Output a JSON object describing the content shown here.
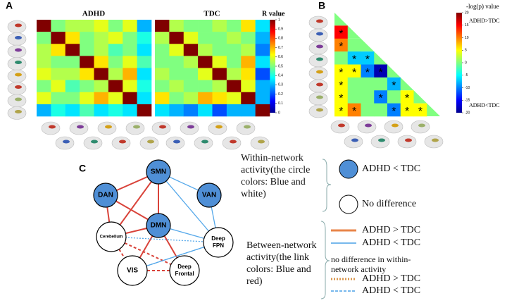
{
  "panel_a": {
    "label": "A",
    "titles": [
      "ADHD",
      "TDC"
    ],
    "colorbar_title": "R value",
    "clim": [
      0,
      1
    ],
    "cticks": [
      0,
      0.1,
      0.2,
      0.3,
      0.4,
      0.5,
      0.6,
      0.7,
      0.8,
      0.9,
      1
    ],
    "matrices": [
      [
        [
          1,
          0.5,
          0.55,
          0.55,
          0.6,
          0.5,
          0.6,
          0.3
        ],
        [
          0.5,
          1,
          0.65,
          0.5,
          0.55,
          0.6,
          0.5,
          0.4
        ],
        [
          0.55,
          0.65,
          1,
          0.5,
          0.55,
          0.45,
          0.5,
          0.35
        ],
        [
          0.55,
          0.5,
          0.5,
          1,
          0.65,
          0.5,
          0.6,
          0.45
        ],
        [
          0.6,
          0.55,
          0.55,
          0.65,
          1,
          0.55,
          0.7,
          0.35
        ],
        [
          0.5,
          0.6,
          0.45,
          0.5,
          0.55,
          1,
          0.6,
          0.4
        ],
        [
          0.6,
          0.5,
          0.5,
          0.6,
          0.7,
          0.6,
          1,
          0.35
        ],
        [
          0.3,
          0.4,
          0.35,
          0.45,
          0.35,
          0.4,
          0.35,
          1
        ]
      ],
      [
        [
          1,
          0.55,
          0.5,
          0.5,
          0.55,
          0.5,
          0.65,
          0.35
        ],
        [
          0.55,
          1,
          0.6,
          0.5,
          0.5,
          0.55,
          0.5,
          0.3
        ],
        [
          0.5,
          0.6,
          1,
          0.55,
          0.5,
          0.5,
          0.55,
          0.25
        ],
        [
          0.5,
          0.5,
          0.55,
          1,
          0.6,
          0.5,
          0.7,
          0.35
        ],
        [
          0.55,
          0.5,
          0.5,
          0.6,
          1,
          0.55,
          0.65,
          0.2
        ],
        [
          0.5,
          0.55,
          0.5,
          0.5,
          0.55,
          1,
          0.6,
          0.3
        ],
        [
          0.65,
          0.5,
          0.55,
          0.7,
          0.65,
          0.6,
          1,
          0.3
        ],
        [
          0.35,
          0.3,
          0.25,
          0.35,
          0.2,
          0.3,
          0.3,
          1
        ]
      ]
    ]
  },
  "panel_b": {
    "label": "B",
    "colorbar_title": "-log(p) value",
    "top_label": "ADHD>TDC",
    "bottom_label": "ADHD<TDC",
    "clim": [
      -20,
      20
    ],
    "cticks": [
      20,
      15,
      10,
      5,
      0,
      -5,
      -10,
      -15,
      -20
    ],
    "values": [
      [
        0
      ],
      [
        15,
        0
      ],
      [
        10,
        0,
        0
      ],
      [
        0,
        -7,
        -7,
        0
      ],
      [
        5,
        5,
        -10,
        -18,
        0
      ],
      [
        5,
        0,
        0,
        0,
        -8,
        0
      ],
      [
        5,
        0,
        0,
        -10,
        0,
        5,
        0
      ],
      [
        5,
        10,
        0,
        0,
        -10,
        5,
        5,
        0
      ]
    ],
    "stars": [
      [
        null
      ],
      [
        "*",
        null
      ],
      [
        "*",
        null,
        null
      ],
      [
        null,
        "*",
        "*",
        null
      ],
      [
        "*",
        "*",
        "*",
        "*",
        null
      ],
      [
        "*",
        null,
        null,
        null,
        "*",
        null
      ],
      [
        "*",
        null,
        null,
        "*",
        null,
        "*",
        null
      ],
      [
        "*",
        "*",
        null,
        null,
        "*",
        "*",
        "*",
        null
      ]
    ]
  },
  "panel_c": {
    "label": "C",
    "nodes": [
      {
        "label": "SMN",
        "state": "lower"
      },
      {
        "label": "DAN",
        "state": "lower"
      },
      {
        "label": "VAN",
        "state": "lower"
      },
      {
        "label": "DMN",
        "state": "lower"
      },
      {
        "label": "Cerebellum",
        "state": "none"
      },
      {
        "label": "Deep FPN",
        "state": "none"
      },
      {
        "label": "VIS",
        "state": "none"
      },
      {
        "label": "Deep Frontal",
        "state": "none"
      }
    ],
    "edges": [
      [
        0,
        1,
        "higher"
      ],
      [
        0,
        3,
        "higher"
      ],
      [
        0,
        4,
        "higher"
      ],
      [
        1,
        3,
        "higher"
      ],
      [
        1,
        4,
        "higher"
      ],
      [
        3,
        4,
        "higher"
      ],
      [
        3,
        6,
        "higher"
      ],
      [
        3,
        7,
        "higher"
      ],
      [
        0,
        2,
        "lower"
      ],
      [
        0,
        5,
        "lower"
      ],
      [
        2,
        5,
        "lower"
      ],
      [
        3,
        5,
        "lower"
      ],
      [
        6,
        5,
        "lower"
      ],
      [
        4,
        6,
        "higher_nodiff"
      ],
      [
        4,
        7,
        "higher_nodiff"
      ],
      [
        6,
        7,
        "higher_nodiff"
      ],
      [
        4,
        5,
        "lower_nodiff"
      ],
      [
        6,
        5,
        "lower_nodiff"
      ]
    ]
  },
  "legend": {
    "within_title": "Within-network activity(the circle colors: Blue and white)",
    "within_items": [
      "ADHD < TDC",
      "No difference"
    ],
    "between_title": "Between-network activity(the link colors: Blue and red)",
    "between_items": [
      "ADHD > TDC",
      "ADHD < TDC"
    ],
    "nodiff_title": "no difference in within-network activity",
    "nodiff_items": [
      "ADHD > TDC",
      "ADHD < TDC"
    ]
  }
}
